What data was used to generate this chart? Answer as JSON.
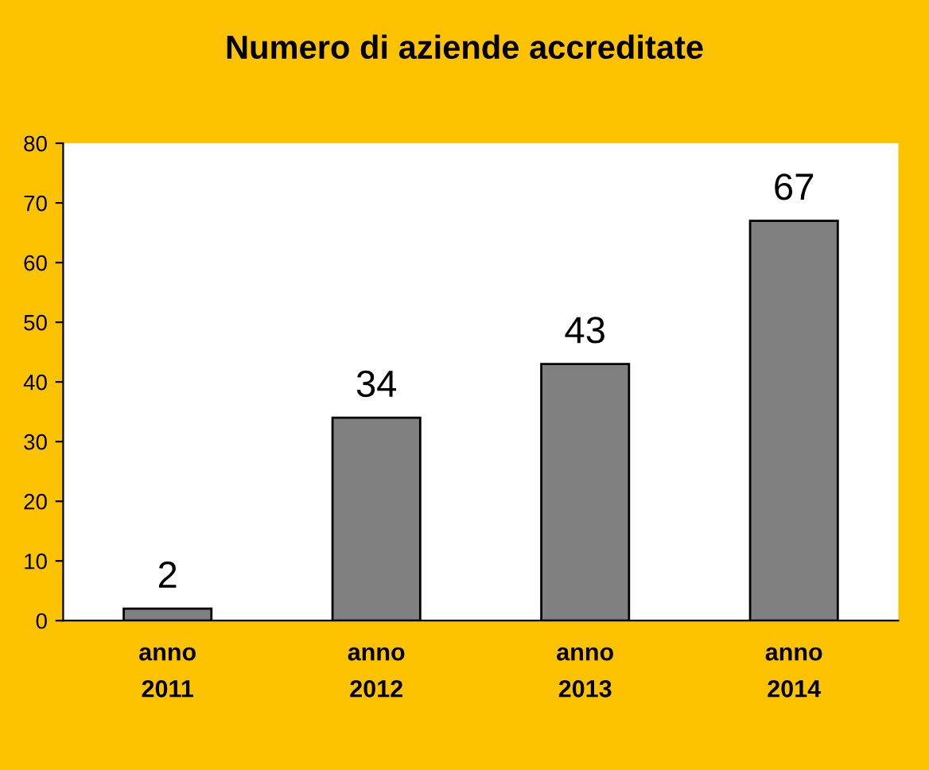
{
  "chart_data": {
    "type": "bar",
    "title": "Numero di aziende accreditate",
    "categories": [
      "anno\n2011",
      "anno\n2012",
      "anno\n2013",
      "anno\n2014"
    ],
    "values": [
      2,
      34,
      43,
      67
    ],
    "color": "#808080",
    "ylim": [
      0,
      80
    ],
    "yticks": [
      0,
      10,
      20,
      30,
      40,
      50,
      60,
      70,
      80
    ],
    "data_labels": true,
    "grid": false
  }
}
